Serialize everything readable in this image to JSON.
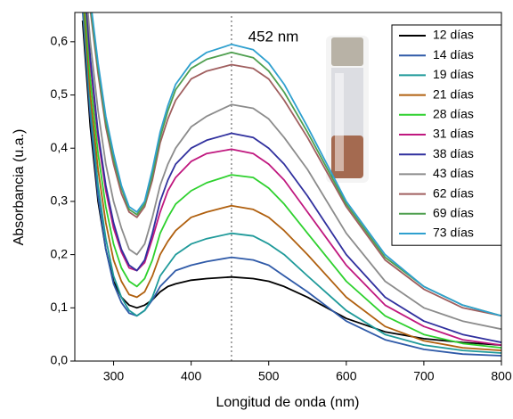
{
  "chart_data": {
    "type": "line",
    "xlabel": "Longitud de onda (nm)",
    "ylabel": "Absorbancia (u.a.)",
    "annotation": "452 nm",
    "vline": 452,
    "xlim": [
      250,
      800
    ],
    "ylim": [
      0,
      0.655
    ],
    "xticks": [
      300,
      400,
      500,
      600,
      700,
      800
    ],
    "yticks": [
      {
        "value": 0,
        "label": "0,0"
      },
      {
        "value": 0.1,
        "label": "0,1"
      },
      {
        "value": 0.2,
        "label": "0,2"
      },
      {
        "value": 0.3,
        "label": "0,3"
      },
      {
        "value": 0.4,
        "label": "0,4"
      },
      {
        "value": 0.5,
        "label": "0,5"
      },
      {
        "value": 0.6,
        "label": "0,6"
      }
    ],
    "x": [
      260,
      270,
      280,
      290,
      300,
      310,
      320,
      330,
      340,
      350,
      360,
      370,
      380,
      400,
      420,
      452,
      480,
      500,
      520,
      550,
      600,
      650,
      700,
      750,
      800
    ],
    "series": [
      {
        "name": "12 días",
        "color": "#000000",
        "values": [
          0.64,
          0.44,
          0.3,
          0.21,
          0.15,
          0.12,
          0.105,
          0.1,
          0.105,
          0.115,
          0.13,
          0.14,
          0.145,
          0.152,
          0.155,
          0.158,
          0.155,
          0.15,
          0.14,
          0.12,
          0.08,
          0.055,
          0.042,
          0.035,
          0.03
        ]
      },
      {
        "name": "14 días",
        "color": "#2f5aa8",
        "values": [
          0.66,
          0.46,
          0.31,
          0.21,
          0.145,
          0.11,
          0.09,
          0.085,
          0.095,
          0.115,
          0.14,
          0.155,
          0.17,
          0.18,
          0.187,
          0.195,
          0.19,
          0.18,
          0.16,
          0.13,
          0.075,
          0.04,
          0.022,
          0.013,
          0.01
        ]
      },
      {
        "name": "19 días",
        "color": "#1f9a9a",
        "values": [
          0.68,
          0.48,
          0.33,
          0.23,
          0.16,
          0.12,
          0.095,
          0.085,
          0.095,
          0.12,
          0.16,
          0.18,
          0.2,
          0.22,
          0.23,
          0.24,
          0.235,
          0.22,
          0.2,
          0.16,
          0.095,
          0.05,
          0.03,
          0.02,
          0.015
        ]
      },
      {
        "name": "21 días",
        "color": "#b0600f",
        "values": [
          0.7,
          0.5,
          0.36,
          0.26,
          0.19,
          0.15,
          0.125,
          0.12,
          0.13,
          0.16,
          0.2,
          0.225,
          0.245,
          0.27,
          0.28,
          0.292,
          0.285,
          0.27,
          0.245,
          0.2,
          0.12,
          0.065,
          0.038,
          0.025,
          0.02
        ]
      },
      {
        "name": "28 días",
        "color": "#2ed12e",
        "values": [
          0.72,
          0.53,
          0.39,
          0.29,
          0.22,
          0.175,
          0.15,
          0.14,
          0.155,
          0.19,
          0.24,
          0.27,
          0.295,
          0.32,
          0.335,
          0.35,
          0.345,
          0.325,
          0.295,
          0.24,
          0.15,
          0.085,
          0.05,
          0.033,
          0.025
        ]
      },
      {
        "name": "31 días",
        "color": "#c0187f",
        "values": [
          0.75,
          0.56,
          0.42,
          0.32,
          0.25,
          0.205,
          0.175,
          0.17,
          0.185,
          0.23,
          0.28,
          0.32,
          0.345,
          0.375,
          0.39,
          0.398,
          0.39,
          0.37,
          0.34,
          0.28,
          0.18,
          0.105,
          0.065,
          0.04,
          0.03
        ]
      },
      {
        "name": "38 días",
        "color": "#30309e",
        "values": [
          0.76,
          0.57,
          0.43,
          0.33,
          0.26,
          0.21,
          0.18,
          0.17,
          0.19,
          0.24,
          0.3,
          0.34,
          0.37,
          0.4,
          0.415,
          0.428,
          0.42,
          0.4,
          0.37,
          0.31,
          0.2,
          0.12,
          0.075,
          0.05,
          0.035
        ]
      },
      {
        "name": "43 días",
        "color": "#8c8c8c",
        "values": [
          0.78,
          0.6,
          0.47,
          0.37,
          0.3,
          0.25,
          0.21,
          0.2,
          0.22,
          0.27,
          0.33,
          0.37,
          0.4,
          0.44,
          0.46,
          0.482,
          0.475,
          0.455,
          0.42,
          0.36,
          0.24,
          0.15,
          0.1,
          0.075,
          0.06
        ]
      },
      {
        "name": "62 días",
        "color": "#a05f5f",
        "values": [
          0.83,
          0.66,
          0.54,
          0.44,
          0.37,
          0.315,
          0.28,
          0.27,
          0.29,
          0.34,
          0.41,
          0.455,
          0.49,
          0.53,
          0.545,
          0.557,
          0.55,
          0.53,
          0.49,
          0.42,
          0.29,
          0.19,
          0.135,
          0.1,
          0.085
        ]
      },
      {
        "name": "69 días",
        "color": "#4f9f4f",
        "values": [
          0.84,
          0.67,
          0.55,
          0.45,
          0.38,
          0.325,
          0.285,
          0.275,
          0.295,
          0.35,
          0.42,
          0.47,
          0.51,
          0.55,
          0.567,
          0.58,
          0.57,
          0.545,
          0.505,
          0.43,
          0.295,
          0.195,
          0.14,
          0.105,
          0.085
        ]
      },
      {
        "name": "73 días",
        "color": "#2fa0cf",
        "values": [
          0.85,
          0.68,
          0.56,
          0.46,
          0.39,
          0.33,
          0.29,
          0.28,
          0.3,
          0.36,
          0.43,
          0.48,
          0.52,
          0.56,
          0.58,
          0.595,
          0.585,
          0.56,
          0.52,
          0.44,
          0.3,
          0.2,
          0.14,
          0.105,
          0.085
        ]
      }
    ]
  }
}
